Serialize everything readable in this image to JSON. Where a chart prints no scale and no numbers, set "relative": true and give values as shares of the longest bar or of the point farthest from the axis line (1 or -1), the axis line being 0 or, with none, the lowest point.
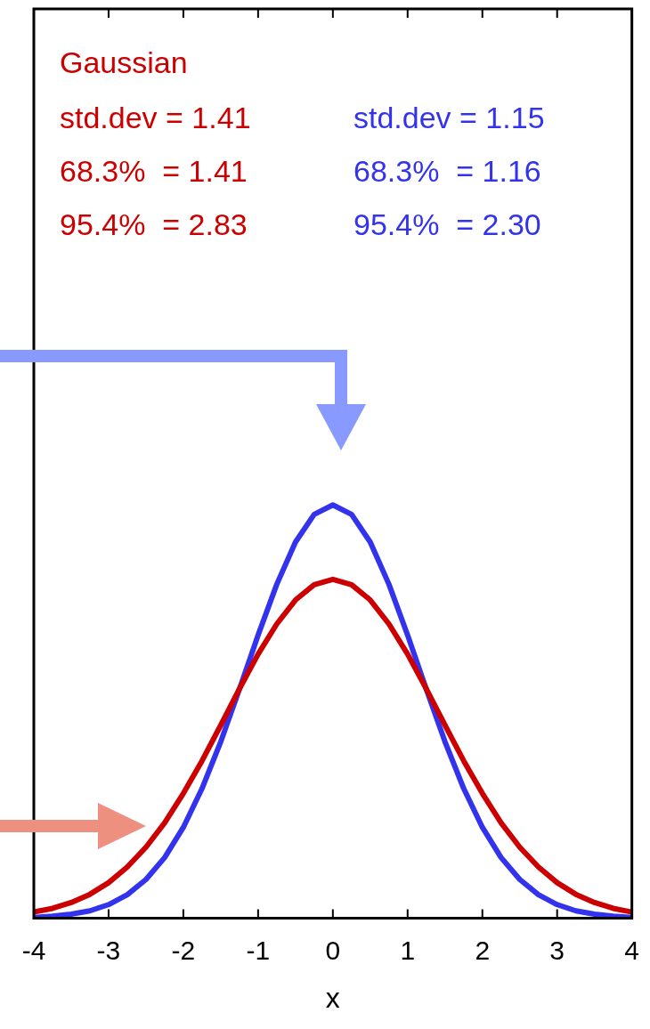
{
  "chart_data": {
    "type": "line",
    "relative": true,
    "marker": "none",
    "xlabel": "x",
    "xlim": [
      -4,
      4
    ],
    "xticks": [
      -4,
      -3,
      -2,
      -1,
      0,
      1,
      2,
      3,
      4
    ],
    "x": [
      -4,
      -3.75,
      -3.5,
      -3.25,
      -3,
      -2.75,
      -2.5,
      -2.25,
      -2,
      -1.75,
      -1.5,
      -1.25,
      -1,
      -0.75,
      -0.5,
      -0.25,
      0,
      0.25,
      0.5,
      0.75,
      1,
      1.25,
      1.5,
      1.75,
      2,
      2.25,
      2.5,
      2.75,
      3,
      3.25,
      3.5,
      3.75,
      4
    ],
    "series": [
      {
        "color": "#cc0000",
        "values": [
          0.015,
          0.024,
          0.038,
          0.058,
          0.086,
          0.124,
          0.172,
          0.231,
          0.302,
          0.381,
          0.467,
          0.555,
          0.639,
          0.712,
          0.77,
          0.807,
          0.82,
          0.807,
          0.77,
          0.712,
          0.639,
          0.555,
          0.467,
          0.381,
          0.302,
          0.231,
          0.172,
          0.124,
          0.086,
          0.058,
          0.038,
          0.024,
          0.015
        ]
      },
      {
        "color": "#3333ee",
        "values": [
          0.002,
          0.005,
          0.01,
          0.018,
          0.033,
          0.057,
          0.094,
          0.147,
          0.22,
          0.314,
          0.427,
          0.554,
          0.685,
          0.808,
          0.91,
          0.977,
          1,
          0.977,
          0.91,
          0.808,
          0.685,
          0.554,
          0.427,
          0.314,
          0.22,
          0.147,
          0.094,
          0.057,
          0.033,
          0.018,
          0.01,
          0.005,
          0.002
        ]
      }
    ],
    "annotations": [
      "Gaussian",
      "std.dev = 1.41",
      "68.3%  = 1.41",
      "95.4%  = 2.83",
      "std.dev = 1.15",
      "68.3%  = 1.16",
      "95.4%  = 2.30"
    ]
  }
}
